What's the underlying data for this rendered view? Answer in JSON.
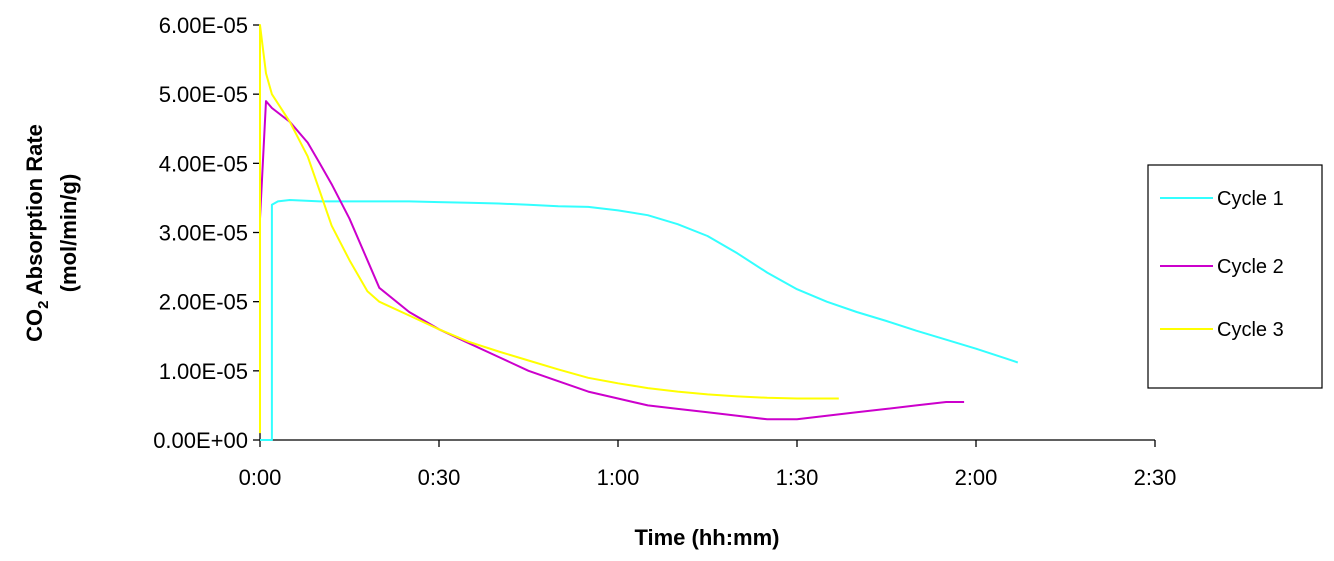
{
  "chart_data": {
    "type": "line",
    "xlabel": "Time (hh:mm)",
    "ylabel_line1": "CO",
    "ylabel_sub": "2",
    "ylabel_rest": " Absorption Rate",
    "ylabel_line2": "(mol/min/g)",
    "xlim": [
      "0:00",
      "2:30"
    ],
    "ylim": [
      0,
      6e-05
    ],
    "x_ticks": [
      "0:00",
      "0:30",
      "1:00",
      "1:30",
      "2:00",
      "2:30"
    ],
    "y_ticks": [
      "0.00E+00",
      "1.00E-05",
      "2.00E-05",
      "3.00E-05",
      "4.00E-05",
      "5.00E-05",
      "6.00E-05"
    ],
    "legend_position": "right",
    "grid": false,
    "series": [
      {
        "name": "Cycle 1",
        "color": "#33FFFF",
        "x": [
          "0:00",
          "0:01",
          "0:02",
          "0:02",
          "0:03",
          "0:05",
          "0:10",
          "0:15",
          "0:20",
          "0:25",
          "0:30",
          "0:35",
          "0:40",
          "0:45",
          "0:50",
          "0:55",
          "1:00",
          "1:05",
          "1:10",
          "1:15",
          "1:20",
          "1:25",
          "1:30",
          "1:35",
          "1:40",
          "1:45",
          "1:50",
          "1:55",
          "2:00",
          "2:05",
          "2:07"
        ],
        "y": [
          0.0,
          0.0,
          0.0,
          3.4e-05,
          3.45e-05,
          3.47e-05,
          3.45e-05,
          3.45e-05,
          3.45e-05,
          3.45e-05,
          3.44e-05,
          3.43e-05,
          3.42e-05,
          3.4e-05,
          3.38e-05,
          3.37e-05,
          3.32e-05,
          3.25e-05,
          3.12e-05,
          2.95e-05,
          2.7e-05,
          2.42e-05,
          2.18e-05,
          2e-05,
          1.85e-05,
          1.72e-05,
          1.58e-05,
          1.45e-05,
          1.32e-05,
          1.18e-05,
          1.12e-05
        ]
      },
      {
        "name": "Cycle 2",
        "color": "#CC00CC",
        "x": [
          "0:00",
          "0:00",
          "0:01",
          "0:02",
          "0:05",
          "0:08",
          "0:10",
          "0:12",
          "0:15",
          "0:18",
          "0:20",
          "0:25",
          "0:30",
          "0:35",
          "0:40",
          "0:45",
          "0:50",
          "0:55",
          "1:00",
          "1:05",
          "1:10",
          "1:15",
          "1:20",
          "1:25",
          "1:30",
          "1:35",
          "1:40",
          "1:45",
          "1:50",
          "1:55",
          "1:58"
        ],
        "y": [
          5e-06,
          3.2e-05,
          4.9e-05,
          4.8e-05,
          4.6e-05,
          4.3e-05,
          4e-05,
          3.7e-05,
          3.2e-05,
          2.6e-05,
          2.2e-05,
          1.85e-05,
          1.6e-05,
          1.4e-05,
          1.2e-05,
          1e-05,
          8.5e-06,
          7e-06,
          6e-06,
          5e-06,
          4.5e-06,
          4e-06,
          3.5e-06,
          3e-06,
          3e-06,
          3.5e-06,
          4e-06,
          4.5e-06,
          5e-06,
          5.5e-06,
          5.5e-06
        ]
      },
      {
        "name": "Cycle 3",
        "color": "#FFFF00",
        "x": [
          "0:00",
          "0:00",
          "0:01",
          "0:02",
          "0:05",
          "0:08",
          "0:10",
          "0:12",
          "0:15",
          "0:18",
          "0:20",
          "0:25",
          "0:30",
          "0:35",
          "0:40",
          "0:45",
          "0:50",
          "0:55",
          "1:00",
          "1:05",
          "1:10",
          "1:15",
          "1:20",
          "1:25",
          "1:30",
          "1:35",
          "1:37"
        ],
        "y": [
          1e-06,
          6e-05,
          5.3e-05,
          5e-05,
          4.6e-05,
          4.1e-05,
          3.6e-05,
          3.1e-05,
          2.6e-05,
          2.15e-05,
          2e-05,
          1.8e-05,
          1.6e-05,
          1.42e-05,
          1.28e-05,
          1.15e-05,
          1.02e-05,
          9e-06,
          8.2e-06,
          7.5e-06,
          7e-06,
          6.6e-06,
          6.3e-06,
          6.1e-06,
          6e-06,
          6e-06,
          6e-06
        ]
      }
    ]
  }
}
